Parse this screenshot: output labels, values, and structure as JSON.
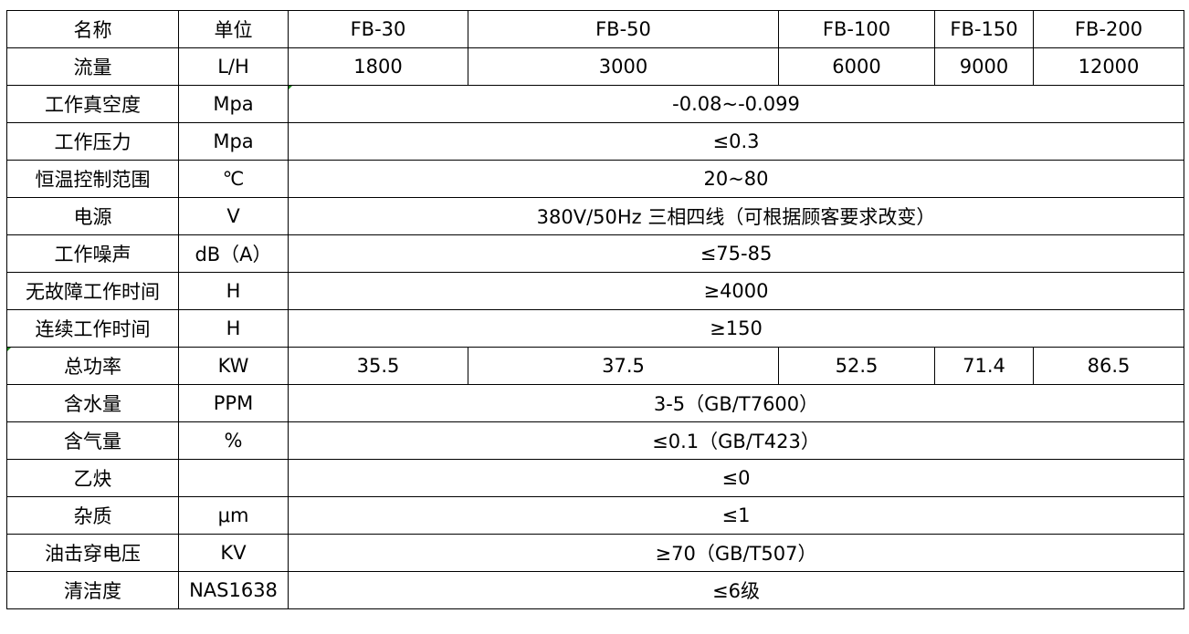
{
  "header": [
    "名称",
    "单位",
    "FB-30",
    "FB-50",
    "FB-100",
    "FB-150",
    "FB-200"
  ],
  "rows": [
    {
      "name": "流量",
      "unit": "L/H",
      "values": [
        "1800",
        "3000",
        "6000",
        "9000",
        "12000"
      ]
    },
    {
      "name": "工作真空度",
      "unit": "Mpa",
      "value": "-0.08~-0.099"
    },
    {
      "name": "工作压力",
      "unit": "Mpa",
      "value": "≤0.3"
    },
    {
      "name": "恒温控制范围",
      "unit": "℃",
      "value": "20~80"
    },
    {
      "name": "电源",
      "unit": "V",
      "value": "380V/50Hz 三相四线（可根据顾客要求改变）"
    },
    {
      "name": "工作噪声",
      "unit": "dB（A）",
      "value": "≤75-85"
    },
    {
      "name": "无故障工作时间",
      "unit": "H",
      "value": "≥4000"
    },
    {
      "name": "连续工作时间",
      "unit": "H",
      "value": "≥150"
    },
    {
      "name": "总功率",
      "unit": "KW",
      "values": [
        "35.5",
        "37.5",
        "52.5",
        "71.4",
        "86.5"
      ]
    },
    {
      "name": "含水量",
      "unit": "PPM",
      "value": "3-5（GB/T7600）"
    },
    {
      "name": "含气量",
      "unit": "%",
      "value": "≤0.1（GB/T423）"
    },
    {
      "name": "乙炔",
      "unit": "",
      "value": "≤0"
    },
    {
      "name": "杂质",
      "unit": "μm",
      "value": "≤1"
    },
    {
      "name": "油击穿电压",
      "unit": "KV",
      "value": "≥70（GB/T507）"
    },
    {
      "name": "清洁度",
      "unit": "NAS1638",
      "value": "≤6级"
    }
  ]
}
